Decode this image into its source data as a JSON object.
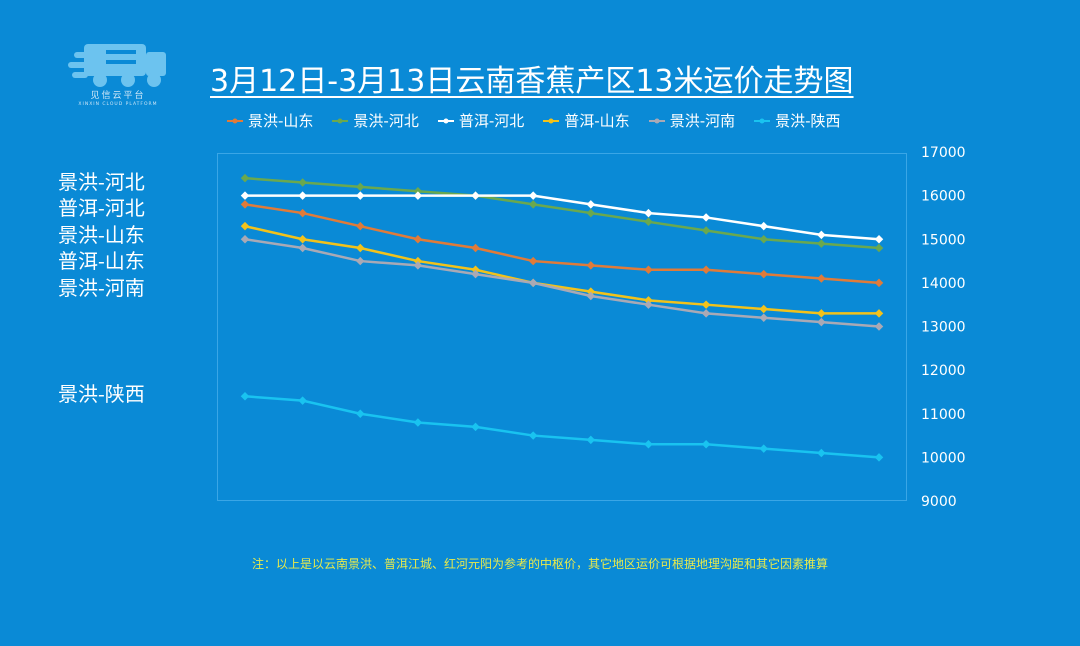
{
  "logo": {
    "caption": "见信云平台",
    "sub": "XINXIN CLOUD PLATFORM"
  },
  "title": "3月12日-3月13日云南香蕉产区13米运价走势图",
  "side_labels": [
    "景洪-河北",
    "普洱-河北",
    "景洪-山东",
    "普洱-山东",
    "景洪-河南",
    "景洪-陕西"
  ],
  "note": "注：以上是以云南景洪、普洱江城、红河元阳为参考的中枢价，其它地区运价可根据地理沟距和其它因素推算",
  "chart_data": {
    "type": "line",
    "title": "3月12日-3月13日云南香蕉产区13米运价走势图",
    "ylim": [
      9000,
      17000
    ],
    "yticks": [
      9000,
      10000,
      11000,
      12000,
      13000,
      14000,
      15000,
      16000,
      17000
    ],
    "y_axis_position": "right",
    "grid": false,
    "legend_position": "top",
    "x": [
      1,
      2,
      3,
      4,
      5,
      6,
      7,
      8,
      9,
      10,
      11,
      12
    ],
    "series": [
      {
        "name": "景洪-山东",
        "color": "#e07b39",
        "values": [
          15800,
          15600,
          15300,
          15000,
          14800,
          14500,
          14400,
          14300,
          14300,
          14200,
          14100,
          14000
        ]
      },
      {
        "name": "景洪-河北",
        "color": "#6aa84f",
        "values": [
          16400,
          16300,
          16200,
          16100,
          16000,
          15800,
          15600,
          15400,
          15200,
          15000,
          14900,
          14800
        ]
      },
      {
        "name": "普洱-河北",
        "color": "#ffffff",
        "values": [
          16000,
          16000,
          16000,
          16000,
          16000,
          16000,
          15800,
          15600,
          15500,
          15300,
          15100,
          15000
        ]
      },
      {
        "name": "普洱-山东",
        "color": "#f2c21b",
        "values": [
          15300,
          15000,
          14800,
          14500,
          14300,
          14000,
          13800,
          13600,
          13500,
          13400,
          13300,
          13300
        ]
      },
      {
        "name": "景洪-河南",
        "color": "#a9a9b5",
        "values": [
          15000,
          14800,
          14500,
          14400,
          14200,
          14000,
          13700,
          13500,
          13300,
          13200,
          13100,
          13000
        ]
      },
      {
        "name": "景洪-陕西",
        "color": "#19c3f0",
        "values": [
          11400,
          11300,
          11000,
          10800,
          10700,
          10500,
          10400,
          10300,
          10300,
          10200,
          10100,
          10000
        ]
      }
    ]
  }
}
